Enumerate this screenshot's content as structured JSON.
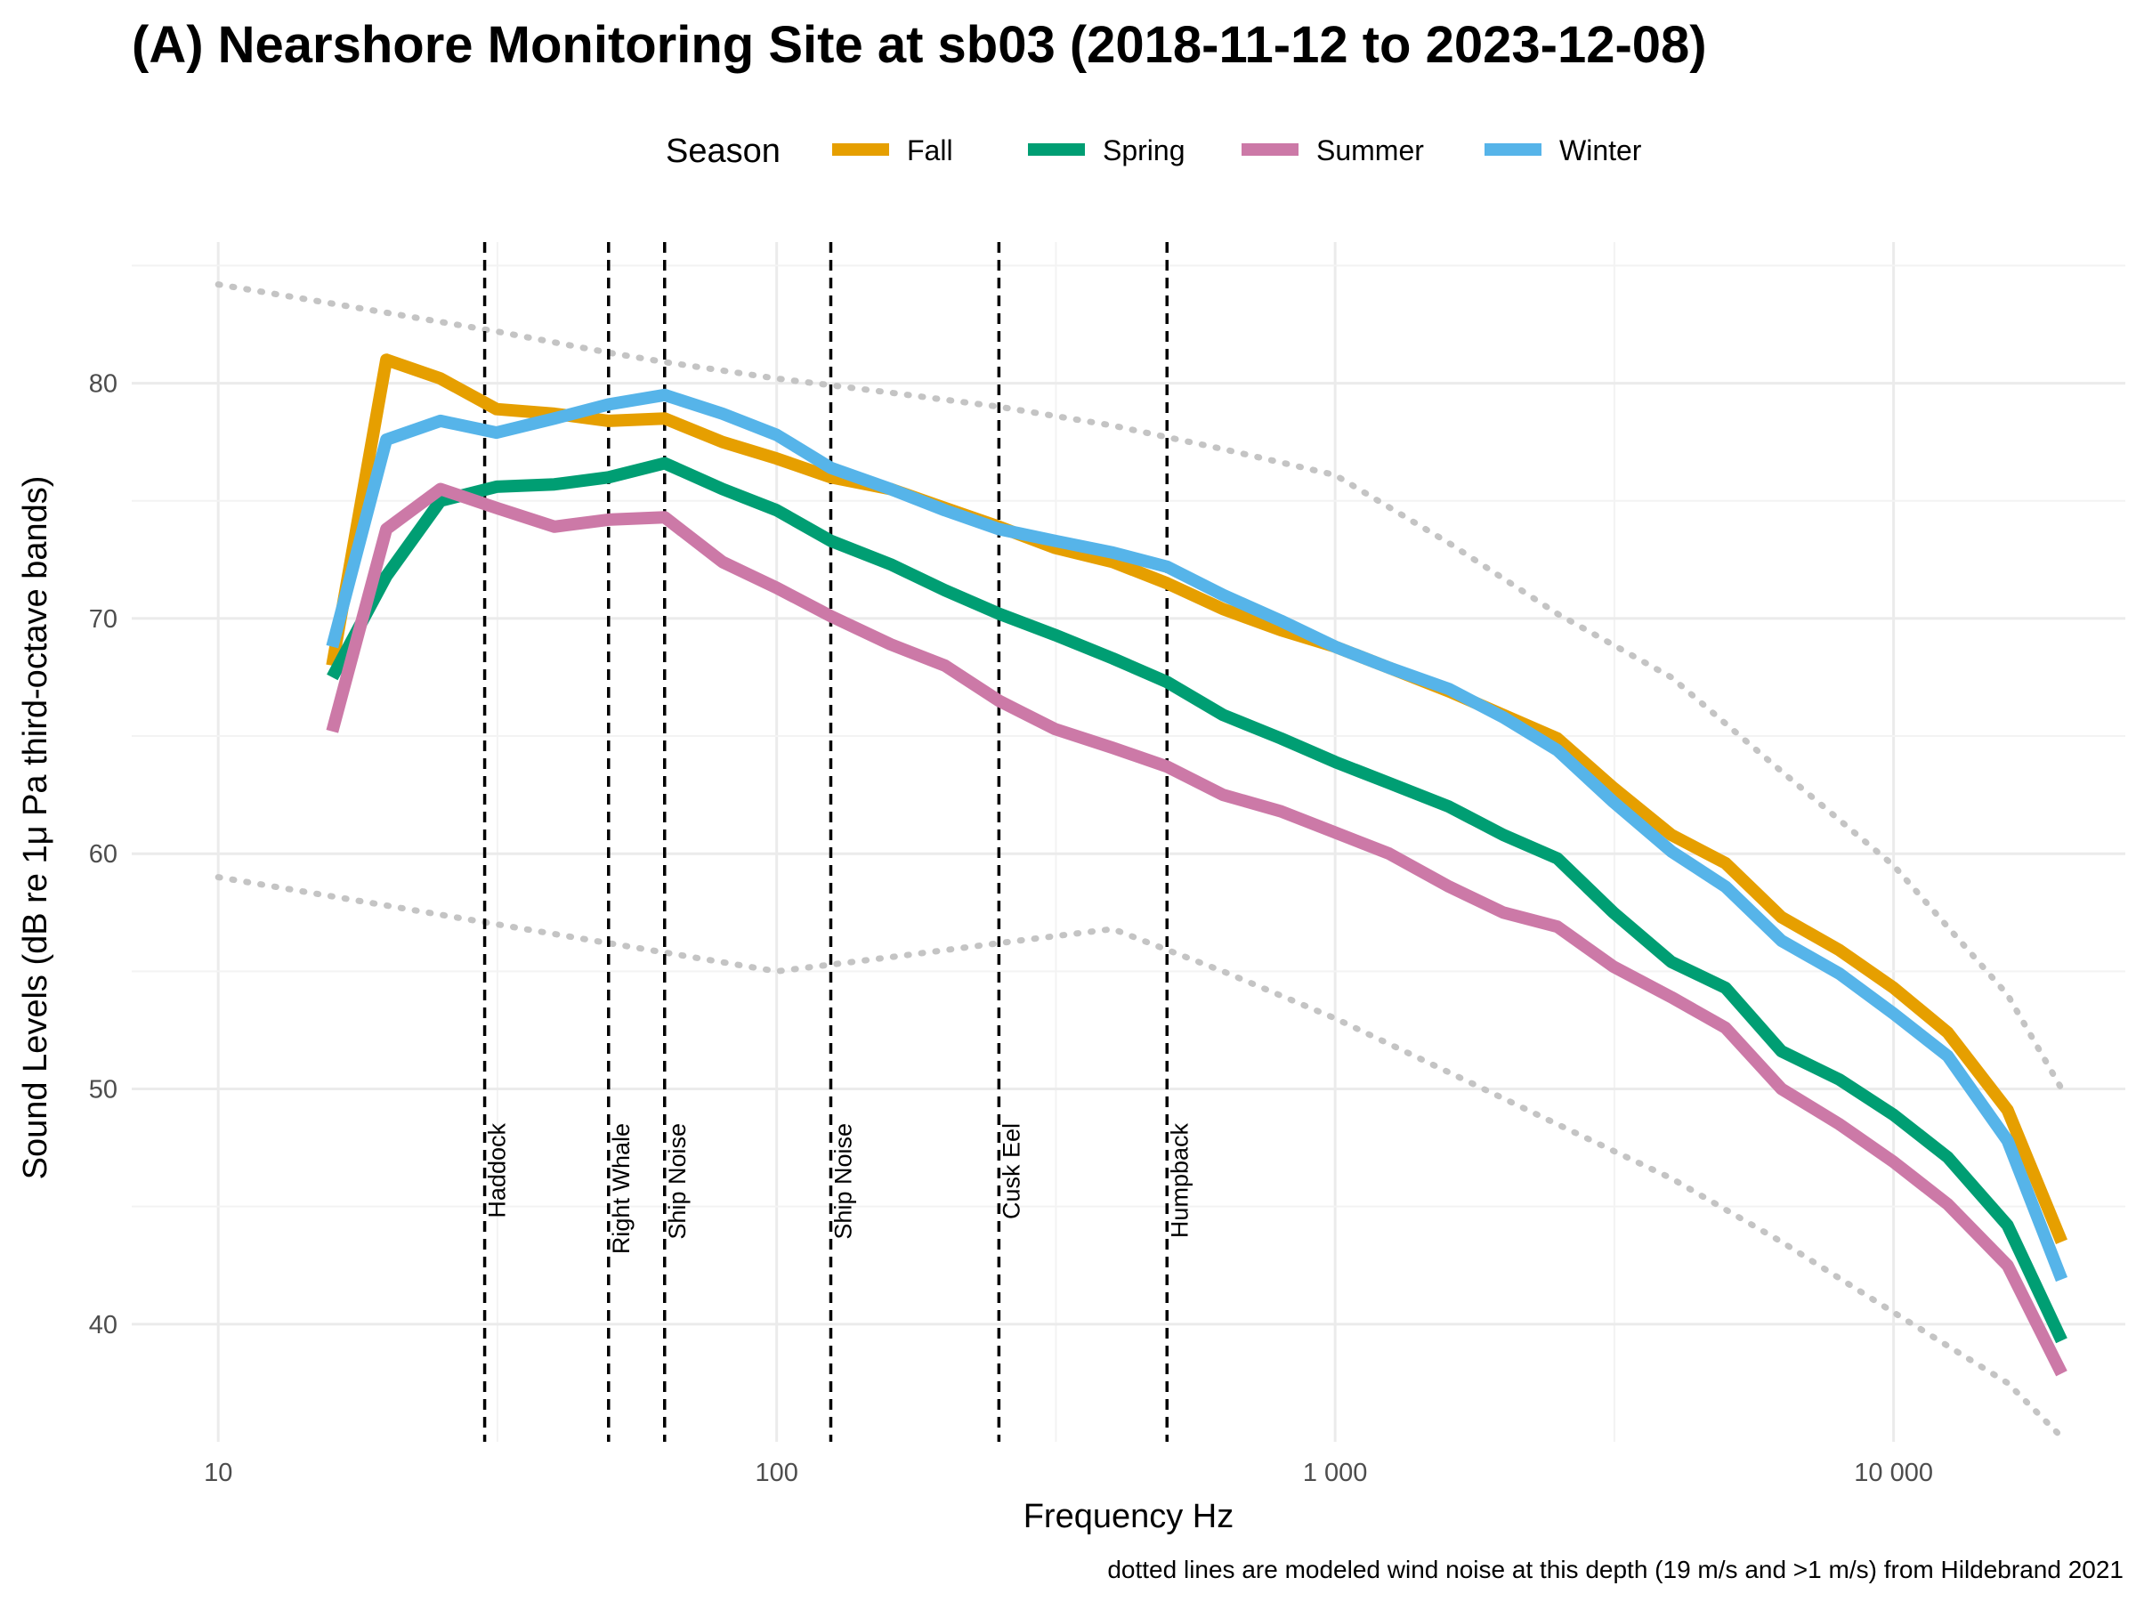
{
  "chart_data": {
    "type": "line",
    "title": "(A) Nearshore Monitoring Site at sb03 (2018-11-12 to 2023-12-08)",
    "xlabel": "Frequency Hz",
    "ylabel": "Sound Levels (dB re 1μ Pa third-octave bands)",
    "caption": "dotted lines are modeled wind noise at this depth (19 m/s and >1 m/s) from Hildebrand 2021",
    "x_scale": "log",
    "xlim": [
      7,
      26000
    ],
    "ylim": [
      35,
      86
    ],
    "grid": true,
    "legend": {
      "title": "Season",
      "placement": "top"
    },
    "x_ticks": [
      {
        "value": 10,
        "label": "10"
      },
      {
        "value": 100,
        "label": "100"
      },
      {
        "value": 1000,
        "label": "1 000"
      },
      {
        "value": 10000,
        "label": "10 000"
      }
    ],
    "y_ticks": [
      {
        "value": 40,
        "label": "40"
      },
      {
        "value": 50,
        "label": "50"
      },
      {
        "value": 60,
        "label": "60"
      },
      {
        "value": 70,
        "label": "70"
      },
      {
        "value": 80,
        "label": "80"
      }
    ],
    "x": [
      16,
      20,
      25,
      31.5,
      40,
      50,
      63,
      80,
      100,
      125,
      160,
      200,
      250,
      315,
      400,
      500,
      630,
      800,
      1000,
      1250,
      1600,
      2000,
      2500,
      3150,
      4000,
      5000,
      6300,
      8000,
      10000,
      12500,
      16000,
      20000
    ],
    "series": [
      {
        "name": "Fall",
        "color": "#E69F00",
        "values": [
          68,
          81,
          80.2,
          78.9,
          78.7,
          78.4,
          78.5,
          77.5,
          76.8,
          76,
          75.5,
          74.7,
          73.9,
          73,
          72.4,
          71.5,
          70.4,
          69.5,
          68.8,
          67.9,
          66.9,
          65.9,
          64.9,
          62.8,
          60.8,
          59.6,
          57.3,
          55.9,
          54.3,
          52.4,
          49.1,
          43.5
        ]
      },
      {
        "name": "Spring",
        "color": "#009E73",
        "values": [
          67.5,
          71.8,
          75,
          75.6,
          75.7,
          76,
          76.6,
          75.5,
          74.6,
          73.3,
          72.3,
          71.2,
          70.2,
          69.3,
          68.3,
          67.3,
          65.9,
          64.9,
          63.9,
          63,
          62,
          60.8,
          59.8,
          57.5,
          55.4,
          54.3,
          51.6,
          50.4,
          48.9,
          47.1,
          44.2,
          39.3
        ]
      },
      {
        "name": "Summer",
        "color": "#CC79A7",
        "values": [
          65.2,
          73.8,
          75.5,
          74.7,
          73.9,
          74.2,
          74.3,
          72.4,
          71.3,
          70.1,
          68.9,
          68,
          66.5,
          65.3,
          64.5,
          63.7,
          62.5,
          61.8,
          60.9,
          60,
          58.6,
          57.5,
          56.9,
          55.2,
          53.9,
          52.6,
          50,
          48.5,
          46.9,
          45.1,
          42.5,
          37.9
        ]
      },
      {
        "name": "Winter",
        "color": "#56B4E9",
        "values": [
          68.8,
          77.6,
          78.4,
          77.9,
          78.5,
          79.1,
          79.5,
          78.7,
          77.8,
          76.4,
          75.5,
          74.6,
          73.8,
          73.3,
          72.8,
          72.2,
          71,
          69.9,
          68.8,
          67.9,
          67,
          65.8,
          64.4,
          62.2,
          60.1,
          58.6,
          56.3,
          54.9,
          53.2,
          51.4,
          47.8,
          41.9
        ]
      }
    ],
    "wind_noise": {
      "style": "dotted",
      "color": "#c4c4c4",
      "upper": {
        "x": [
          10,
          20,
          31.5,
          50,
          63,
          100,
          160,
          250,
          400,
          630,
          1000,
          1600,
          2500,
          4000,
          6300,
          10000,
          16000,
          20000
        ],
        "values": [
          84.2,
          83,
          82.2,
          81.3,
          80.9,
          80.2,
          79.6,
          79,
          78.2,
          77.2,
          76.1,
          73.2,
          70.2,
          67.5,
          63.5,
          59.5,
          54,
          50
        ]
      },
      "lower": {
        "x": [
          10,
          20,
          31.5,
          50,
          63,
          100,
          160,
          250,
          400,
          630,
          1000,
          1600,
          2500,
          4000,
          6300,
          10000,
          16000,
          20000
        ],
        "values": [
          59,
          57.8,
          57,
          56.2,
          55.8,
          55,
          55.6,
          56.2,
          56.8,
          55,
          53,
          50.7,
          48.5,
          46.2,
          43.5,
          40.5,
          37.5,
          35.2
        ]
      }
    },
    "annotations": [
      {
        "x": 30,
        "label": "Haddock"
      },
      {
        "x": 50,
        "label": "Right Whale"
      },
      {
        "x": 63,
        "label": "Ship Noise"
      },
      {
        "x": 125,
        "label": "Ship Noise"
      },
      {
        "x": 250,
        "label": "Cusk Eel"
      },
      {
        "x": 500,
        "label": "Humpback"
      }
    ]
  }
}
